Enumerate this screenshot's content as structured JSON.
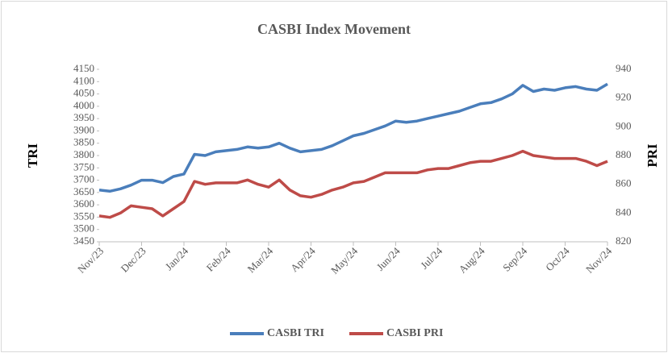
{
  "chart_data": {
    "type": "line",
    "title": "CASBI Index Movement",
    "categories": [
      "Nov/23",
      null,
      null,
      null,
      "Dec/23",
      null,
      null,
      null,
      "Jan/24",
      null,
      null,
      null,
      "Feb/24",
      null,
      null,
      null,
      "Mar/24",
      null,
      null,
      null,
      "Apr/24",
      null,
      null,
      null,
      "May/24",
      null,
      null,
      null,
      "Jun/24",
      null,
      null,
      null,
      "Jul/24",
      null,
      null,
      null,
      "Aug/24",
      null,
      null,
      null,
      "Sep/24",
      null,
      null,
      null,
      "Oct/24",
      null,
      null,
      null,
      "Nov/24"
    ],
    "series": [
      {
        "name": "CASBI TRI",
        "color": "#4a7ebb",
        "axis": "y",
        "values": [
          3660,
          3655,
          3665,
          3680,
          3700,
          3700,
          3690,
          3715,
          3725,
          3805,
          3800,
          3815,
          3820,
          3825,
          3835,
          3830,
          3835,
          3850,
          3830,
          3815,
          3820,
          3825,
          3840,
          3860,
          3880,
          3890,
          3905,
          3920,
          3940,
          3935,
          3940,
          3950,
          3960,
          3970,
          3980,
          3995,
          4010,
          4015,
          4030,
          4050,
          4085,
          4060,
          4070,
          4065,
          4075,
          4080,
          4070,
          4065,
          4090
        ]
      },
      {
        "name": "CASBI PRI",
        "color": "#be4b48",
        "axis": "y2",
        "values": [
          838,
          837,
          840,
          845,
          844,
          843,
          838,
          843,
          848,
          862,
          860,
          861,
          861,
          861,
          863,
          860,
          858,
          863,
          856,
          852,
          851,
          853,
          856,
          858,
          861,
          862,
          865,
          868,
          868,
          868,
          868,
          870,
          871,
          871,
          873,
          875,
          876,
          876,
          878,
          880,
          883,
          880,
          879,
          878,
          878,
          878,
          876,
          873,
          876
        ]
      }
    ],
    "ylabel": "TRI",
    "y2label": "PRI",
    "ylim": [
      3450,
      4150
    ],
    "yticks": [
      3450,
      3500,
      3550,
      3600,
      3650,
      3700,
      3750,
      3800,
      3850,
      3900,
      3950,
      4000,
      4050,
      4100,
      4150
    ],
    "y2lim": [
      820,
      940
    ],
    "y2ticks": [
      820,
      840,
      860,
      880,
      900,
      920,
      940
    ],
    "legend": "bottom"
  }
}
